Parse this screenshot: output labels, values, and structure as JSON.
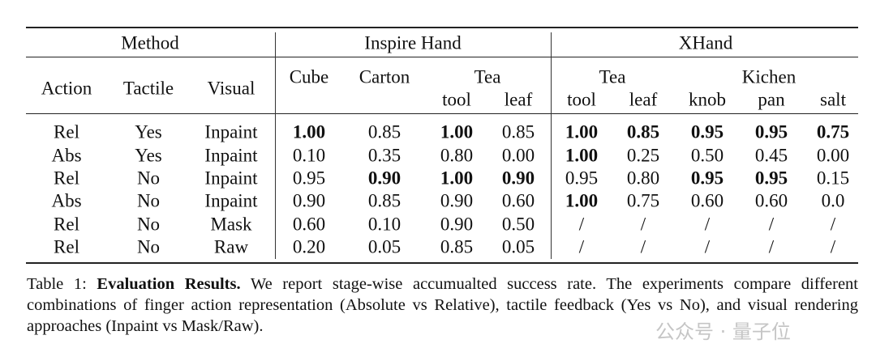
{
  "header": {
    "group1": "Method",
    "group2": "Inspire Hand",
    "group3": "XHand",
    "method_cols": [
      "Action",
      "Tactile",
      "Visual"
    ],
    "inspire_top": [
      "Cube",
      "Carton",
      "Tea"
    ],
    "inspire_sub": [
      "tool",
      "leaf"
    ],
    "xhand_top": [
      "Tea",
      "Kichen"
    ],
    "xhand_sub": [
      "tool",
      "leaf",
      "knob",
      "pan",
      "salt"
    ]
  },
  "rows": [
    {
      "action": "Rel",
      "tactile": "Yes",
      "visual": "Inpaint",
      "values": [
        "1.00",
        "0.85",
        "1.00",
        "0.85",
        "1.00",
        "0.85",
        "0.95",
        "0.95",
        "0.75"
      ],
      "bold": [
        1,
        0,
        1,
        0,
        1,
        1,
        1,
        1,
        1
      ]
    },
    {
      "action": "Abs",
      "tactile": "Yes",
      "visual": "Inpaint",
      "values": [
        "0.10",
        "0.35",
        "0.80",
        "0.00",
        "1.00",
        "0.25",
        "0.50",
        "0.45",
        "0.00"
      ],
      "bold": [
        0,
        0,
        0,
        0,
        1,
        0,
        0,
        0,
        0
      ]
    },
    {
      "action": "Rel",
      "tactile": "No",
      "visual": "Inpaint",
      "values": [
        "0.95",
        "0.90",
        "1.00",
        "0.90",
        "0.95",
        "0.80",
        "0.95",
        "0.95",
        "0.15"
      ],
      "bold": [
        0,
        1,
        1,
        1,
        0,
        0,
        1,
        1,
        0
      ]
    },
    {
      "action": "Abs",
      "tactile": "No",
      "visual": "Inpaint",
      "values": [
        "0.90",
        "0.85",
        "0.90",
        "0.60",
        "1.00",
        "0.75",
        "0.60",
        "0.60",
        "0.0"
      ],
      "bold": [
        0,
        0,
        0,
        0,
        1,
        0,
        0,
        0,
        0
      ]
    },
    {
      "action": "Rel",
      "tactile": "No",
      "visual": "Mask",
      "values": [
        "0.60",
        "0.10",
        "0.90",
        "0.50",
        "/",
        "/",
        "/",
        "/",
        "/"
      ],
      "bold": [
        0,
        0,
        0,
        0,
        0,
        0,
        0,
        0,
        0
      ]
    },
    {
      "action": "Rel",
      "tactile": "No",
      "visual": "Raw",
      "values": [
        "0.20",
        "0.05",
        "0.85",
        "0.05",
        "/",
        "/",
        "/",
        "/",
        "/"
      ],
      "bold": [
        0,
        0,
        0,
        0,
        0,
        0,
        0,
        0,
        0
      ]
    }
  ],
  "caption": {
    "label": "Table 1:",
    "title": "Evaluation Results.",
    "text": "We report stage-wise accumualted success rate.  The experiments compare different combinations of finger action representation (Absolute vs Relative), tactile feedback (Yes vs No), and visual rendering approaches (Inpaint vs Mask/Raw)."
  },
  "watermark": "公众号 · 量子位"
}
